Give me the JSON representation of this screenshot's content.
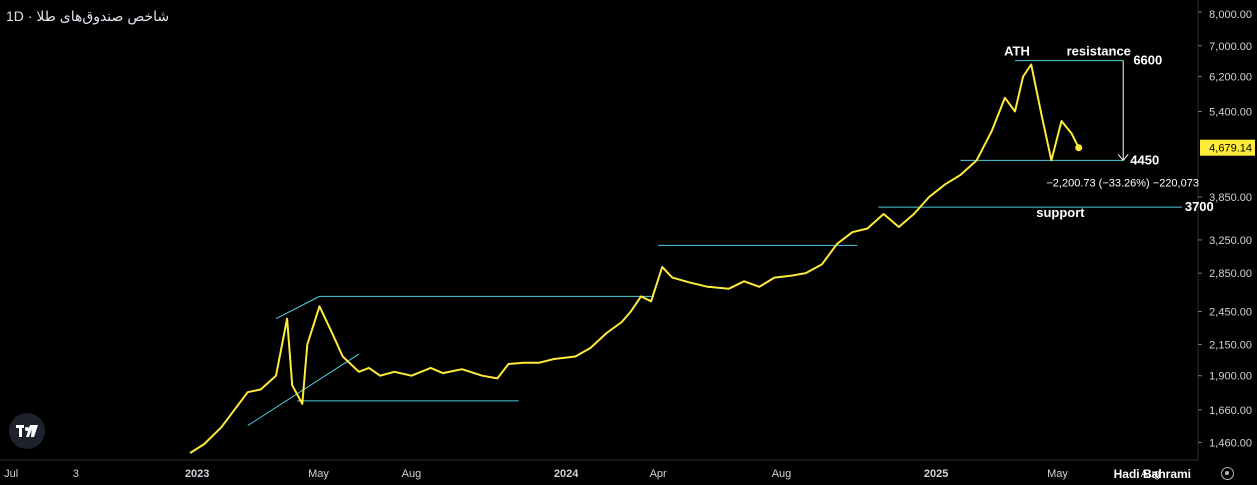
{
  "header": {
    "title": "شاخص صندوق‌های طلا · 1D"
  },
  "footer": {
    "author": "Hadi Bahrami"
  },
  "chart_data": {
    "type": "line",
    "ylim": [
      1400,
      8000
    ],
    "xlim": [
      "2022-06-20",
      "2025-09-15"
    ],
    "y_scale": "log",
    "y_ticks": [
      "8,000.00",
      "7,000.00",
      "6,200.00",
      "5,400.00",
      "4,679.14",
      "3,850.00",
      "3,250.00",
      "2,850.00",
      "2,450.00",
      "2,150.00",
      "1,900.00",
      "1,660.00",
      "1,460.00"
    ],
    "y_tick_values": [
      8000,
      7000,
      6200,
      5400,
      4679.14,
      3850,
      3250,
      2850,
      2450,
      2150,
      1900,
      1660,
      1460
    ],
    "x_ticks": [
      {
        "label": "Jul",
        "date": "2022-07-01"
      },
      {
        "label": "3",
        "date": "2022-09-03"
      },
      {
        "label": "2023",
        "date": "2023-01-01"
      },
      {
        "label": "May",
        "date": "2023-05-01"
      },
      {
        "label": "Aug",
        "date": "2023-08-01"
      },
      {
        "label": "2024",
        "date": "2024-01-01"
      },
      {
        "label": "Apr",
        "date": "2024-04-01"
      },
      {
        "label": "Aug",
        "date": "2024-08-01"
      },
      {
        "label": "2025",
        "date": "2025-01-01"
      },
      {
        "label": "May",
        "date": "2025-05-01"
      },
      {
        "label": "Aug",
        "date": "2025-08-01"
      }
    ],
    "last_price": "4,679.14",
    "last_value": 4679.14,
    "colors": {
      "line": "#ffeb3b",
      "drawing": "#4dd0e1",
      "price_badge": "#ffeb3b",
      "grid": "#000000"
    },
    "series": [
      {
        "x": [
          "2022-12-25",
          "2023-01-08",
          "2023-01-25",
          "2023-02-20",
          "2023-03-05",
          "2023-03-20",
          "2023-03-31",
          "2023-04-05",
          "2023-04-15",
          "2023-04-20",
          "2023-05-02",
          "2023-05-15",
          "2023-05-25",
          "2023-06-10",
          "2023-06-20",
          "2023-07-01",
          "2023-07-15",
          "2023-08-01",
          "2023-08-20",
          "2023-09-01",
          "2023-09-20",
          "2023-10-10",
          "2023-10-25",
          "2023-11-05",
          "2023-11-20",
          "2023-12-05",
          "2023-12-20",
          "2024-01-10",
          "2024-01-25",
          "2024-02-10",
          "2024-02-25",
          "2024-03-05",
          "2024-03-15",
          "2024-03-25",
          "2024-04-05",
          "2024-04-15",
          "2024-05-01",
          "2024-05-20",
          "2024-06-10",
          "2024-06-25",
          "2024-07-10",
          "2024-07-25",
          "2024-08-10",
          "2024-08-25",
          "2024-09-10",
          "2024-09-25",
          "2024-10-10",
          "2024-10-25",
          "2024-11-10",
          "2024-11-25",
          "2024-12-10",
          "2024-12-25",
          "2025-01-10",
          "2025-01-25",
          "2025-02-10",
          "2025-02-25",
          "2025-03-10",
          "2025-03-20",
          "2025-03-28",
          "2025-04-05",
          "2025-04-15",
          "2025-04-25",
          "2025-05-05",
          "2025-05-15",
          "2025-05-22"
        ],
        "values": [
          1400,
          1450,
          1550,
          1780,
          1800,
          1900,
          2380,
          1830,
          1700,
          2150,
          2500,
          2240,
          2050,
          1930,
          1960,
          1900,
          1930,
          1900,
          1960,
          1920,
          1950,
          1900,
          1880,
          1990,
          2000,
          2000,
          2030,
          2050,
          2120,
          2250,
          2350,
          2450,
          2600,
          2550,
          2920,
          2800,
          2750,
          2700,
          2680,
          2760,
          2700,
          2800,
          2820,
          2850,
          2950,
          3200,
          3350,
          3400,
          3600,
          3420,
          3600,
          3850,
          4050,
          4200,
          4450,
          5000,
          5700,
          5400,
          6200,
          6500,
          5350,
          4450,
          5200,
          4950,
          4679.14
        ]
      }
    ],
    "annotations": [
      {
        "text": "ATH",
        "value": 6600
      },
      {
        "text": "resistance",
        "value": 6600
      },
      {
        "text": "6600",
        "value": 6600
      },
      {
        "text": "4450",
        "value": 4450
      },
      {
        "text": "−2,200.73 (−33.26%) −220,073",
        "value": 4450
      },
      {
        "text": "support",
        "value": 3700
      },
      {
        "text": "3700",
        "value": 3700
      }
    ],
    "drawings": [
      {
        "kind": "hline",
        "from": "2025-03-20",
        "to": "2025-07-05",
        "value": 6600
      },
      {
        "kind": "hline",
        "from": "2025-01-25",
        "to": "2025-07-05",
        "value": 4450
      },
      {
        "kind": "hline",
        "from": "2024-11-05",
        "to": "2025-09-01",
        "value": 3700
      },
      {
        "kind": "hline",
        "from": "2024-04-01",
        "to": "2024-10-15",
        "value": 3180
      },
      {
        "kind": "hline",
        "from": "2023-05-02",
        "to": "2024-03-28",
        "value": 2600
      },
      {
        "kind": "hline",
        "from": "2023-04-10",
        "to": "2023-11-15",
        "value": 1720
      },
      {
        "kind": "segment",
        "from": "2023-03-20",
        "to": "2023-05-02",
        "v1": 2380,
        "v2": 2600
      },
      {
        "kind": "segment",
        "from": "2023-02-20",
        "to": "2023-06-10",
        "v1": 1560,
        "v2": 2070
      },
      {
        "kind": "arrow",
        "at": "2025-07-05",
        "v1": 6600,
        "v2": 4450
      }
    ]
  }
}
